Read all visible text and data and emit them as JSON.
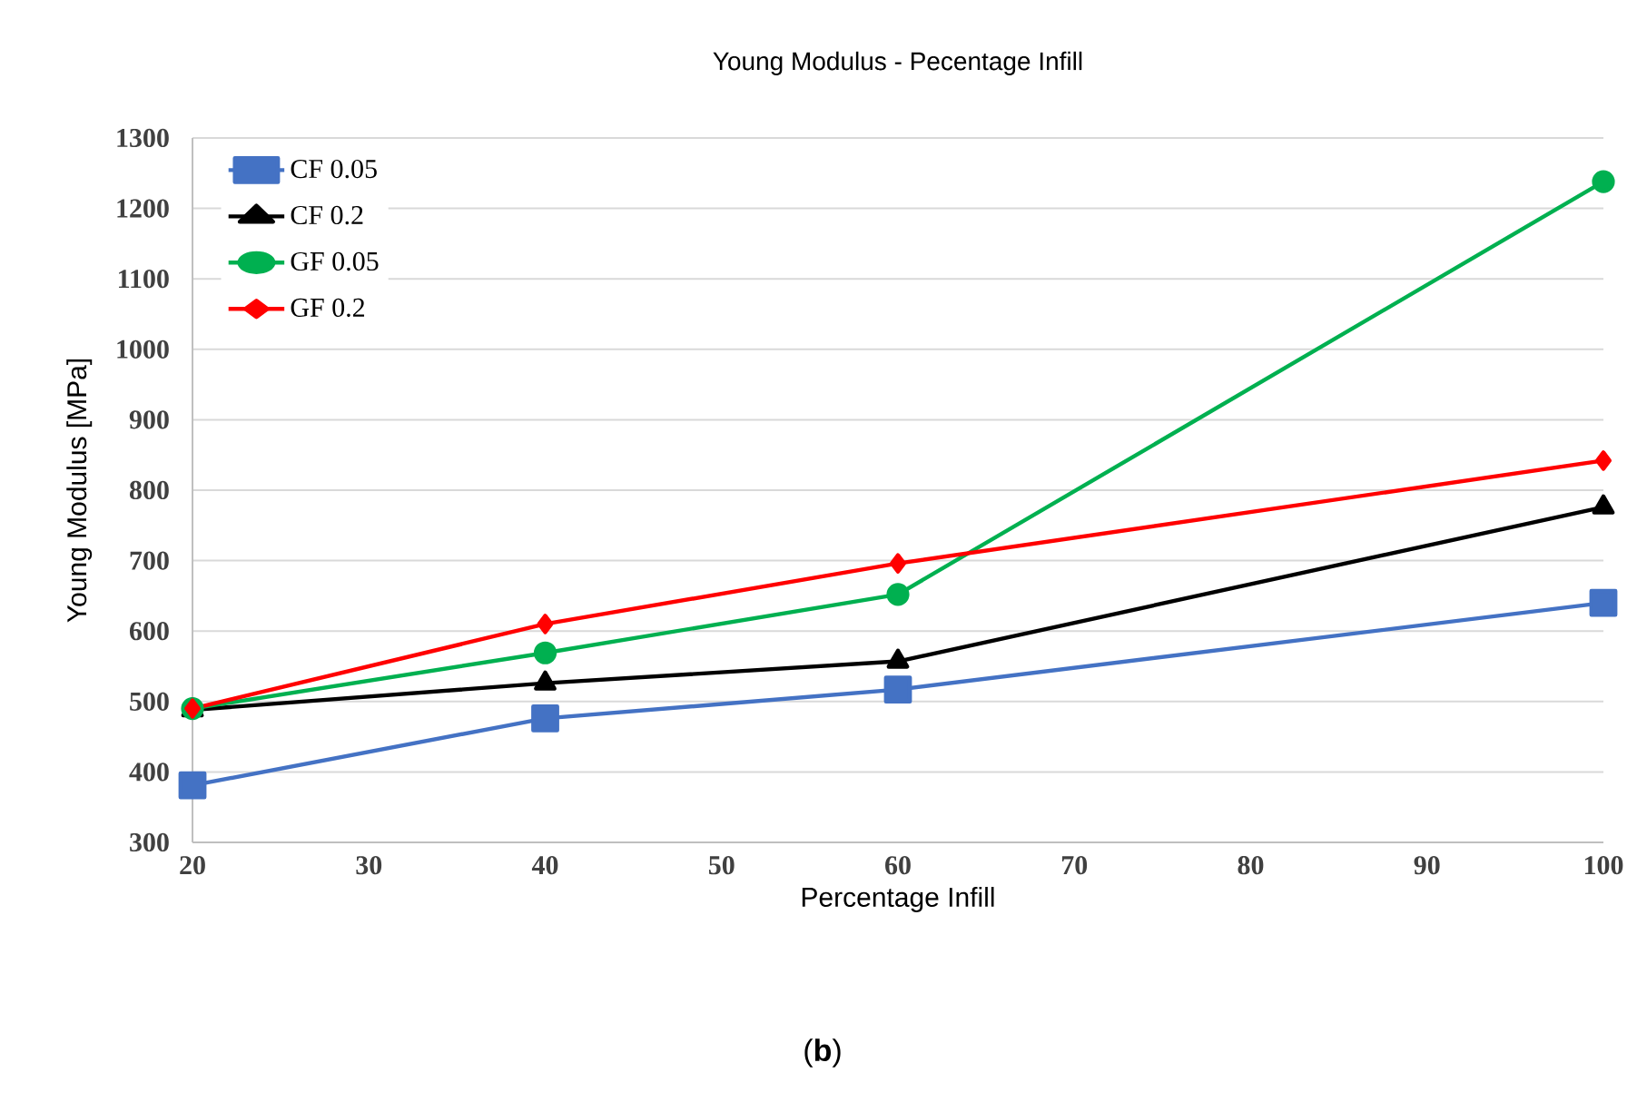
{
  "chart_data": {
    "type": "line",
    "title": "Young Modulus - Pecentage Infill",
    "xlabel": "Percentage Infill",
    "ylabel": "Young Modulus [MPa]",
    "x": [
      20,
      40,
      60,
      100
    ],
    "series": [
      {
        "name": "CF 0.05",
        "color": "#4472c4",
        "marker": "square",
        "values": [
          381,
          476,
          517,
          640
        ]
      },
      {
        "name": "CF 0.2",
        "color": "#000000",
        "marker": "triangle",
        "values": [
          488,
          526,
          557,
          776
        ]
      },
      {
        "name": "GF 0.05",
        "color": "#00b050",
        "marker": "circle",
        "values": [
          490,
          569,
          652,
          1238
        ]
      },
      {
        "name": "GF 0.2",
        "color": "#ff0000",
        "marker": "diamond",
        "values": [
          490,
          610,
          696,
          842
        ]
      }
    ],
    "xlim": [
      20,
      100
    ],
    "xticks": [
      20,
      30,
      40,
      50,
      60,
      70,
      80,
      90,
      100
    ],
    "ylim": [
      300,
      1300
    ],
    "yticks": [
      300,
      400,
      500,
      600,
      700,
      800,
      900,
      1000,
      1100,
      1200,
      1300
    ],
    "grid": "y",
    "legend": "top left",
    "line_style": "solid",
    "annotations": [
      "(**b**)"
    ]
  }
}
